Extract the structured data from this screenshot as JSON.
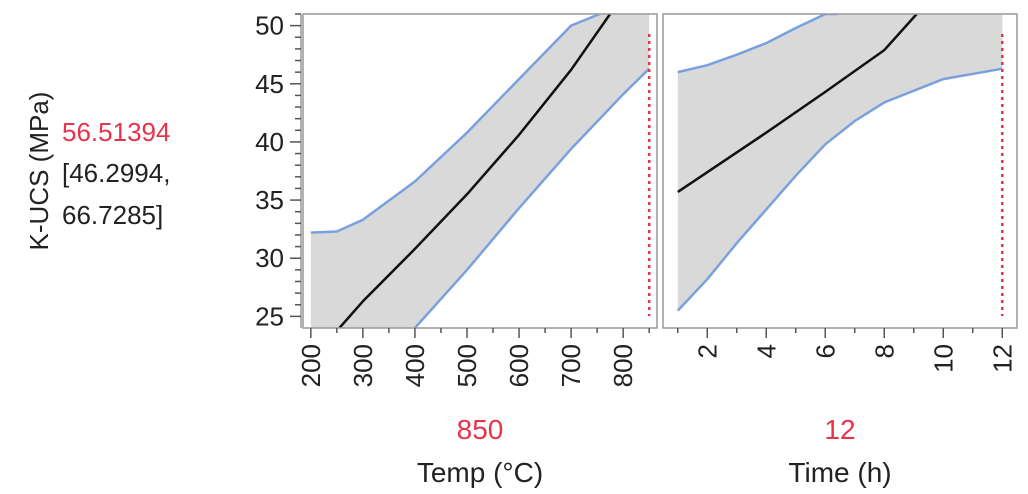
{
  "profiler": {
    "response_label": "K-UCS (MPa)",
    "prediction": "56.51394",
    "ci_line1": "[46.2994,",
    "ci_line2": "66.7285]",
    "colors": {
      "mean_line": "#111111",
      "ci_line": "#7aa0e0",
      "ci_fill": "#d9d9d9",
      "setting": "#e8334a",
      "frame": "#999999"
    }
  },
  "chart_data": [
    {
      "type": "line",
      "xlabel": "Temp (°C)",
      "ylabel": "K-UCS (MPa)",
      "current_setting": 850,
      "setting_label": "850",
      "xlim": [
        185,
        865
      ],
      "ylim": [
        24,
        51
      ],
      "x_ticks": [
        200,
        300,
        400,
        500,
        600,
        700,
        800
      ],
      "y_ticks": [
        25,
        30,
        35,
        40,
        45,
        50
      ],
      "series": [
        {
          "role": "prediction",
          "x": [
            255,
            300,
            400,
            500,
            600,
            700,
            775
          ],
          "y": [
            24,
            26.3,
            30.8,
            35.5,
            40.6,
            46.2,
            51
          ]
        },
        {
          "role": "upper-ci",
          "x": [
            200,
            250,
            300,
            400,
            500,
            600,
            700,
            755
          ],
          "y": [
            32.2,
            32.3,
            33.3,
            36.6,
            40.8,
            45.4,
            50,
            51
          ]
        },
        {
          "role": "lower-ci",
          "x": [
            400,
            500,
            600,
            700,
            800,
            850
          ],
          "y": [
            24,
            29,
            34.3,
            39.4,
            44.1,
            46.3
          ]
        }
      ]
    },
    {
      "type": "line",
      "xlabel": "Time (h)",
      "current_setting": 12,
      "setting_label": "12",
      "xlim": [
        0.5,
        12.5
      ],
      "ylim": [
        24,
        51
      ],
      "x_ticks": [
        2,
        4,
        6,
        8,
        10,
        12
      ],
      "y_ticks": [
        25,
        30,
        35,
        40,
        45,
        50
      ],
      "series": [
        {
          "role": "prediction",
          "x": [
            1,
            2,
            4,
            6,
            8,
            9.1
          ],
          "y": [
            35.7,
            37.4,
            40.8,
            44.3,
            47.9,
            51
          ]
        },
        {
          "role": "upper-ci",
          "x": [
            1,
            2,
            3,
            4,
            5,
            6,
            6.4
          ],
          "y": [
            46,
            46.6,
            47.5,
            48.5,
            49.8,
            51,
            51
          ]
        },
        {
          "role": "lower-ci",
          "x": [
            1,
            2,
            3,
            4,
            5,
            6,
            7,
            8,
            10,
            12
          ],
          "y": [
            25.5,
            28.2,
            31.3,
            34.2,
            37.1,
            39.8,
            41.8,
            43.4,
            45.4,
            46.3
          ]
        }
      ]
    }
  ]
}
